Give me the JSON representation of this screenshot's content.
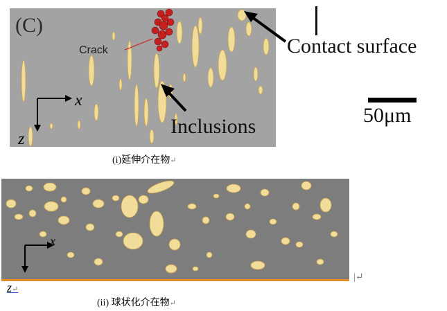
{
  "figure": {
    "panel_label": "(C)",
    "crack_label": "Crack",
    "callout_contact": "Contact surface",
    "callout_inclusions": "Inclusions",
    "scale_bar_label": "50μm",
    "axis_x": "x",
    "axis_z": "z",
    "caption_1": "(i)延伸介在物",
    "caption_2": "(ii) 球状化介在物",
    "mark_1": "↵",
    "mark_2": "↵",
    "mark_3": "↵",
    "mark_4": "|↵"
  },
  "colors": {
    "panel1_bg": "#a3a3a3",
    "panel2_bg": "#7d7d7d",
    "inclusion": "#f2dc9a",
    "crack": "#c42020",
    "edge": "#e08a2a"
  }
}
